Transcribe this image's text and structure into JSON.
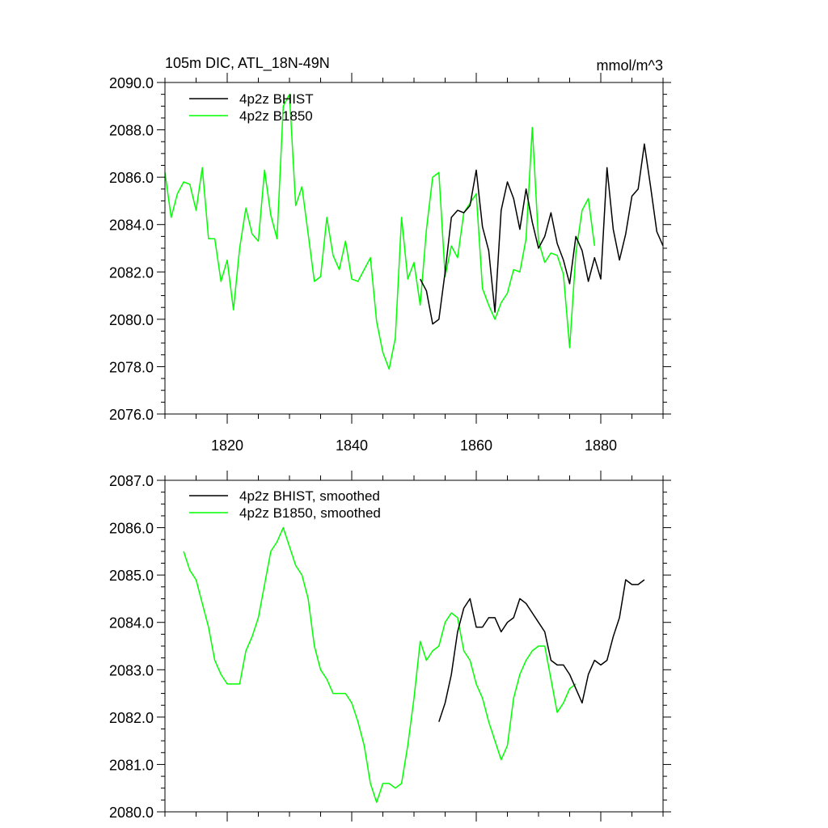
{
  "chart_data": [
    {
      "type": "line",
      "title": "105m DIC, ATL_18N-49N",
      "units": "mmol/m^3",
      "xlabel": "",
      "ylabel": "",
      "xlim": [
        1810,
        1890
      ],
      "ylim": [
        2076.0,
        2090.0
      ],
      "x_tick_labels": [
        "1820",
        "1840",
        "1860",
        "1880"
      ],
      "y_tick_labels": [
        "2076.0",
        "2078.0",
        "2080.0",
        "2082.0",
        "2084.0",
        "2086.0",
        "2088.0",
        "2090.0"
      ],
      "legend_placement": "top-left",
      "grid": false,
      "series": [
        {
          "name": "4p2z BHIST",
          "color": "#000000",
          "x_start": 1851,
          "values": [
            2081.7,
            2081.2,
            2079.8,
            2080.0,
            2082.0,
            2084.3,
            2084.6,
            2084.5,
            2084.8,
            2086.3,
            2083.9,
            2082.9,
            2080.3,
            2084.6,
            2085.8,
            2085.1,
            2083.8,
            2085.5,
            2084.1,
            2083.0,
            2083.5,
            2084.5,
            2083.2,
            2082.5,
            2081.5,
            2083.5,
            2082.9,
            2081.6,
            2082.6,
            2081.7,
            2086.4,
            2083.8,
            2082.5,
            2083.6,
            2085.2,
            2085.5,
            2087.4,
            2085.6,
            2083.7,
            2083.1
          ]
        },
        {
          "name": "4p2z B1850",
          "color": "#00ff00",
          "x_start": 1810,
          "values": [
            2086.2,
            2084.3,
            2085.3,
            2085.8,
            2085.7,
            2084.6,
            2086.4,
            2083.4,
            2083.4,
            2081.6,
            2082.5,
            2080.4,
            2083.0,
            2084.7,
            2083.6,
            2083.3,
            2086.3,
            2084.4,
            2083.4,
            2089.0,
            2089.5,
            2084.8,
            2085.6,
            2083.6,
            2081.6,
            2081.8,
            2084.3,
            2082.7,
            2082.1,
            2083.3,
            2081.7,
            2081.6,
            2082.1,
            2082.6,
            2079.9,
            2078.6,
            2077.9,
            2079.2,
            2084.3,
            2081.7,
            2082.4,
            2080.6,
            2083.8,
            2086.0,
            2086.2,
            2081.8,
            2083.1,
            2082.6,
            2084.5,
            2084.9,
            2085.3,
            2081.3,
            2080.6,
            2080.0,
            2080.7,
            2081.1,
            2082.1,
            2082.0,
            2083.4,
            2088.1,
            2083.3,
            2082.4,
            2082.8,
            2082.7,
            2081.9,
            2078.8,
            2082.8,
            2084.6,
            2085.1,
            2083.1
          ]
        }
      ]
    },
    {
      "type": "line",
      "title": "",
      "xlabel": "",
      "ylabel": "",
      "xlim": [
        1810,
        1890
      ],
      "ylim": [
        2080.0,
        2087.0
      ],
      "x_tick_labels": [],
      "y_tick_labels": [
        "2080.0",
        "2081.0",
        "2082.0",
        "2083.0",
        "2084.0",
        "2085.0",
        "2086.0",
        "2087.0"
      ],
      "legend_placement": "top-left",
      "grid": false,
      "series": [
        {
          "name": "4p2z BHIST, smoothed",
          "color": "#000000",
          "x_start": 1854,
          "values": [
            2081.9,
            2082.3,
            2082.9,
            2083.8,
            2084.3,
            2084.5,
            2083.9,
            2083.9,
            2084.1,
            2084.1,
            2083.8,
            2084.0,
            2084.1,
            2084.5,
            2084.4,
            2084.2,
            2084.0,
            2083.8,
            2083.2,
            2083.1,
            2083.1,
            2082.9,
            2082.6,
            2082.3,
            2082.9,
            2083.2,
            2083.1,
            2083.2,
            2083.7,
            2084.1,
            2084.9,
            2084.8,
            2084.8,
            2084.9
          ]
        },
        {
          "name": "4p2z B1850, smoothed",
          "color": "#00ff00",
          "x_start": 1813,
          "values": [
            2085.5,
            2085.1,
            2084.9,
            2084.4,
            2083.9,
            2083.2,
            2082.9,
            2082.7,
            2082.7,
            2082.7,
            2083.4,
            2083.7,
            2084.1,
            2084.8,
            2085.5,
            2085.7,
            2086.0,
            2085.6,
            2085.2,
            2085.0,
            2084.5,
            2083.5,
            2083.0,
            2082.8,
            2082.5,
            2082.5,
            2082.5,
            2082.3,
            2081.9,
            2081.4,
            2080.6,
            2080.2,
            2080.6,
            2080.6,
            2080.5,
            2080.6,
            2081.4,
            2082.4,
            2083.6,
            2083.2,
            2083.4,
            2083.5,
            2084.0,
            2084.2,
            2084.1,
            2083.4,
            2083.2,
            2082.7,
            2082.4,
            2081.9,
            2081.5,
            2081.1,
            2081.4,
            2082.4,
            2082.9,
            2083.2,
            2083.4,
            2083.5,
            2083.5,
            2082.8,
            2082.1,
            2082.3,
            2082.6,
            2082.7
          ]
        }
      ]
    }
  ]
}
